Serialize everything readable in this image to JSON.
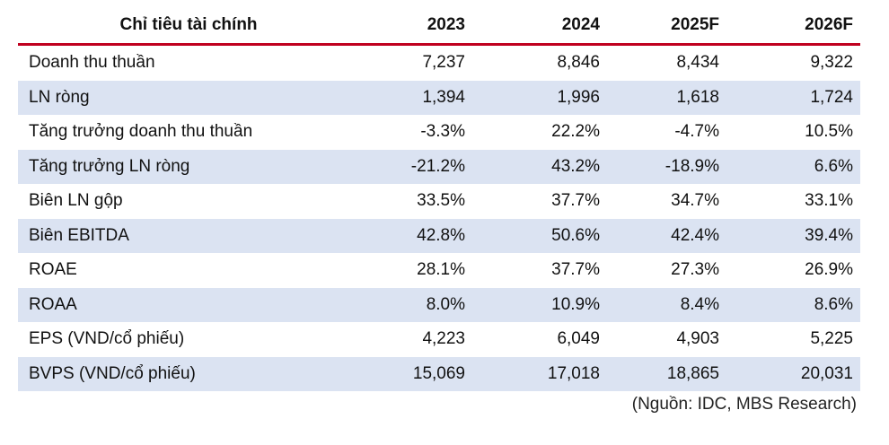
{
  "header": {
    "label": "Chỉ tiêu tài chính",
    "years": [
      "2023",
      "2024",
      "2025F",
      "2026F"
    ]
  },
  "rows": [
    {
      "label": "Doanh thu thuần",
      "values": [
        "7,237",
        "8,846",
        "8,434",
        "9,322"
      ]
    },
    {
      "label": "LN ròng",
      "values": [
        "1,394",
        "1,996",
        "1,618",
        "1,724"
      ]
    },
    {
      "label": "Tăng trưởng doanh thu thuần",
      "values": [
        "-3.3%",
        "22.2%",
        "-4.7%",
        "10.5%"
      ]
    },
    {
      "label": "Tăng trưởng LN ròng",
      "values": [
        "-21.2%",
        "43.2%",
        "-18.9%",
        "6.6%"
      ]
    },
    {
      "label": "Biên LN gộp",
      "values": [
        "33.5%",
        "37.7%",
        "34.7%",
        "33.1%"
      ]
    },
    {
      "label": "Biên EBITDA",
      "values": [
        "42.8%",
        "50.6%",
        "42.4%",
        "39.4%"
      ]
    },
    {
      "label": "ROAE",
      "values": [
        "28.1%",
        "37.7%",
        "27.3%",
        "26.9%"
      ]
    },
    {
      "label": "ROAA",
      "values": [
        "8.0%",
        "10.9%",
        "8.4%",
        "8.6%"
      ]
    },
    {
      "label": "EPS (VND/cổ phiếu)",
      "values": [
        "4,223",
        "6,049",
        "4,903",
        "5,225"
      ]
    },
    {
      "label": "BVPS (VND/cổ phiếu)",
      "values": [
        "15,069",
        "17,018",
        "18,865",
        "20,031"
      ]
    }
  ],
  "source": "(Nguồn: IDC, MBS Research)",
  "colors": {
    "accent_rule": "#c0001f",
    "shade": "#dbe3f2"
  }
}
